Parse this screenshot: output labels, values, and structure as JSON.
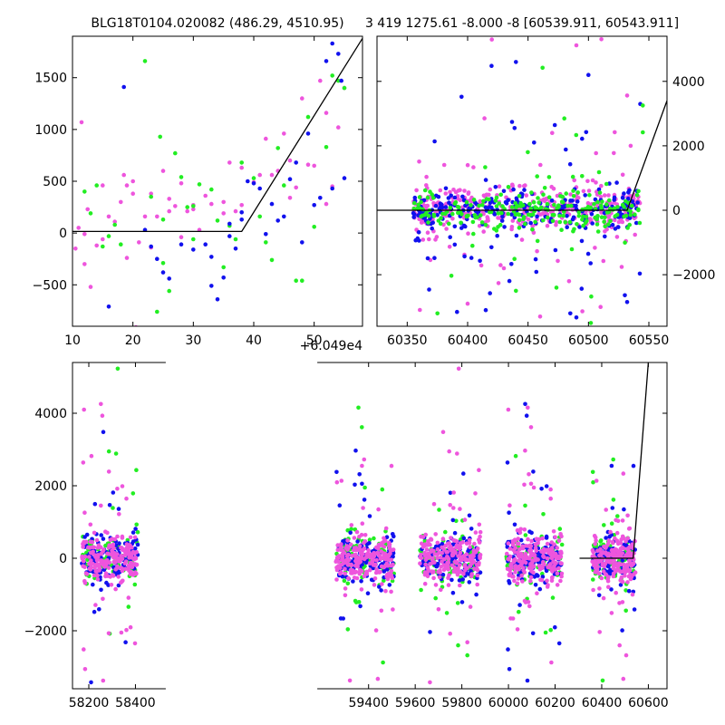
{
  "chart_data": [
    {
      "id": "top-left",
      "type": "scatter",
      "title": "BLG18T0104.020082 (486.29, 4510.95)",
      "x_offset_label": "+6.049e4",
      "xlim": [
        10,
        58
      ],
      "ylim": [
        -900,
        1900
      ],
      "x_ticks": [
        10,
        20,
        30,
        40,
        50
      ],
      "y_ticks": [
        -500,
        0,
        500,
        1000,
        1500
      ],
      "y_axis_side": "left",
      "series": [
        {
          "color": "#ee55dd",
          "points": [
            [
              10.5,
              -150
            ],
            [
              11,
              50
            ],
            [
              11.5,
              1070
            ],
            [
              12,
              -300
            ],
            [
              12.5,
              230
            ],
            [
              13,
              -520
            ],
            [
              14,
              -120
            ],
            [
              15,
              460
            ],
            [
              16,
              160
            ],
            [
              17,
              110
            ],
            [
              18,
              300
            ],
            [
              18.5,
              560
            ],
            [
              19,
              460
            ],
            [
              20,
              380
            ],
            [
              20.5,
              -910
            ],
            [
              21,
              -90
            ],
            [
              22,
              160
            ],
            [
              23,
              380
            ],
            [
              24,
              160
            ],
            [
              25,
              600
            ],
            [
              26,
              330
            ],
            [
              27,
              260
            ],
            [
              28,
              480
            ],
            [
              29,
              210
            ],
            [
              30,
              230
            ],
            [
              31,
              30
            ],
            [
              32,
              360
            ],
            [
              33,
              280
            ],
            [
              35,
              300
            ],
            [
              36,
              680
            ],
            [
              37,
              210
            ],
            [
              38,
              630
            ],
            [
              40,
              490
            ],
            [
              41,
              560
            ],
            [
              42,
              910
            ],
            [
              43,
              560
            ],
            [
              44,
              600
            ],
            [
              45,
              960
            ],
            [
              46,
              340
            ],
            [
              47,
              440
            ],
            [
              48,
              1300
            ],
            [
              49,
              660
            ],
            [
              50,
              650
            ],
            [
              51,
              1470
            ],
            [
              52,
              1160
            ],
            [
              53,
              450
            ],
            [
              54,
              1020
            ],
            [
              55,
              1400
            ],
            [
              52,
              280
            ],
            [
              46,
              700
            ],
            [
              20,
              500
            ],
            [
              26,
              210
            ],
            [
              30,
              270
            ],
            [
              35,
              190
            ],
            [
              23,
              -140
            ],
            [
              15,
              -60
            ],
            [
              12,
              -10
            ],
            [
              19,
              -240
            ],
            [
              28,
              -40
            ],
            [
              38,
              270
            ]
          ]
        },
        {
          "color": "#22ee22",
          "points": [
            [
              12,
              400
            ],
            [
              13,
              190
            ],
            [
              14,
              460
            ],
            [
              15,
              -130
            ],
            [
              16,
              -30
            ],
            [
              17,
              80
            ],
            [
              18,
              -110
            ],
            [
              22,
              1660
            ],
            [
              23,
              350
            ],
            [
              24,
              -760
            ],
            [
              24.5,
              930
            ],
            [
              25,
              130
            ],
            [
              26,
              -560
            ],
            [
              27,
              770
            ],
            [
              28,
              540
            ],
            [
              29,
              250
            ],
            [
              30,
              260
            ],
            [
              31,
              470
            ],
            [
              33,
              420
            ],
            [
              34,
              120
            ],
            [
              36,
              70
            ],
            [
              37,
              -60
            ],
            [
              38,
              680
            ],
            [
              40,
              530
            ],
            [
              41,
              160
            ],
            [
              42,
              -90
            ],
            [
              43,
              -260
            ],
            [
              44,
              820
            ],
            [
              45,
              460
            ],
            [
              47,
              -460
            ],
            [
              48,
              -460
            ],
            [
              49,
              1120
            ],
            [
              50,
              60
            ],
            [
              52,
              830
            ],
            [
              53,
              1520
            ],
            [
              54,
              1470
            ],
            [
              55,
              1400
            ],
            [
              35,
              -330
            ],
            [
              25,
              -290
            ],
            [
              30,
              -60
            ]
          ]
        },
        {
          "color": "#1111ee",
          "points": [
            [
              16,
              -710
            ],
            [
              18.5,
              1410
            ],
            [
              22,
              30
            ],
            [
              23,
              -130
            ],
            [
              24,
              -250
            ],
            [
              25,
              -380
            ],
            [
              26,
              -440
            ],
            [
              28,
              -110
            ],
            [
              30,
              -160
            ],
            [
              32,
              -110
            ],
            [
              33,
              -510
            ],
            [
              34,
              -640
            ],
            [
              35,
              -430
            ],
            [
              36,
              90
            ],
            [
              37,
              -150
            ],
            [
              38,
              200
            ],
            [
              39,
              500
            ],
            [
              40,
              480
            ],
            [
              41,
              430
            ],
            [
              42,
              -10
            ],
            [
              43,
              280
            ],
            [
              44,
              120
            ],
            [
              45,
              160
            ],
            [
              46,
              520
            ],
            [
              47,
              680
            ],
            [
              48,
              -90
            ],
            [
              49,
              960
            ],
            [
              50,
              270
            ],
            [
              51,
              340
            ],
            [
              52,
              1660
            ],
            [
              53,
              1830
            ],
            [
              54,
              1730
            ],
            [
              54.5,
              1470
            ],
            [
              55,
              530
            ],
            [
              53,
              430
            ],
            [
              36,
              -30
            ],
            [
              33,
              -230
            ],
            [
              38,
              130
            ]
          ]
        }
      ],
      "model_line": [
        [
          10,
          15
        ],
        [
          38,
          15
        ],
        [
          58,
          1880
        ]
      ]
    },
    {
      "id": "top-right",
      "type": "scatter",
      "title": "3 419 1275.61 -8.000 -8 [60539.911, 60543.911]",
      "xlim": [
        60325,
        60565
      ],
      "ylim": [
        -3600,
        5400
      ],
      "x_ticks": [
        60350,
        60400,
        60450,
        60500,
        60550
      ],
      "y_ticks": [
        -2000,
        0,
        2000,
        4000
      ],
      "y_axis_side": "right",
      "x_range": [
        60355,
        60543
      ],
      "spread": 1300,
      "outliers": [
        [
          60420,
          5300
        ],
        [
          60440,
          4600
        ],
        [
          60462,
          4420
        ],
        [
          60490,
          5120
        ],
        [
          60500,
          4200
        ],
        [
          60545,
          3250
        ],
        [
          60532,
          3560
        ],
        [
          60395,
          3520
        ],
        [
          60480,
          2850
        ],
        [
          60470,
          2400
        ],
        [
          60455,
          2100
        ],
        [
          60545,
          2420
        ],
        [
          60400,
          -2900
        ],
        [
          60415,
          -3100
        ],
        [
          60440,
          -2500
        ],
        [
          60460,
          -3300
        ],
        [
          60485,
          -3200
        ],
        [
          60502,
          -3500
        ],
        [
          60510,
          -3000
        ],
        [
          60532,
          -2850
        ],
        [
          60375,
          -3200
        ],
        [
          60430,
          -1800
        ]
      ],
      "series": [
        {
          "color": "#ee55dd",
          "share": 0.45
        },
        {
          "color": "#1111ee",
          "share": 0.3
        },
        {
          "color": "#22ee22",
          "share": 0.25
        }
      ],
      "model_line": [
        [
          60325,
          0
        ],
        [
          60532,
          0
        ],
        [
          60565,
          3400
        ]
      ]
    },
    {
      "id": "bottom",
      "type": "scatter",
      "xlim": [
        58130,
        60680
      ],
      "ylim": [
        -3600,
        5400
      ],
      "x_ticks": [
        58200,
        58400,
        59400,
        59600,
        59800,
        60000,
        60200,
        60400,
        60600
      ],
      "y_ticks": [
        -2000,
        0,
        2000,
        4000
      ],
      "y_axis_side": "left",
      "broken_axis_gaps": [
        [
          58530,
          59180
        ]
      ],
      "seasons": [
        [
          58170,
          58410
        ],
        [
          59260,
          59510
        ],
        [
          59620,
          59880
        ],
        [
          59990,
          60230
        ],
        [
          60360,
          60545
        ]
      ],
      "spread": 1300,
      "series": [
        {
          "color": "#22ee22",
          "share": 0.2
        },
        {
          "color": "#1111ee",
          "share": 0.3
        },
        {
          "color": "#ee55dd",
          "share": 0.5
        }
      ],
      "model_line": [
        [
          60305,
          0
        ],
        [
          60535,
          0
        ],
        [
          60600,
          5400
        ]
      ]
    }
  ]
}
